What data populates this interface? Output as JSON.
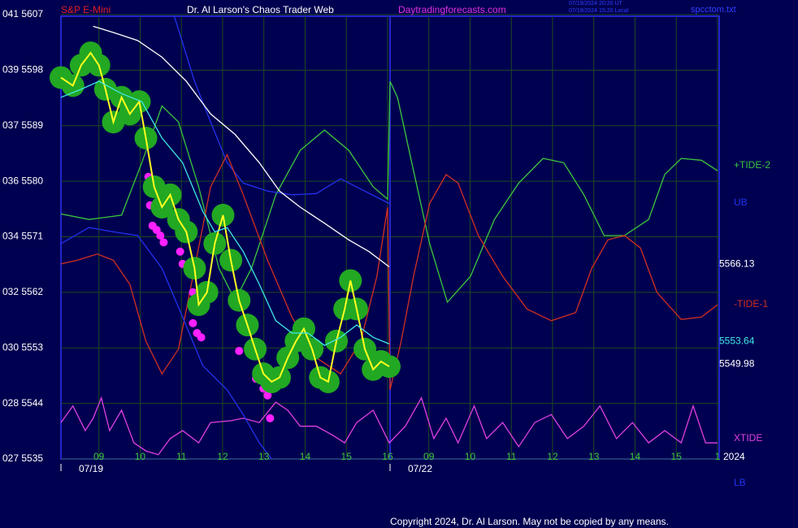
{
  "chart_data": {
    "type": "line",
    "symbol": "S&P E-Mini",
    "title": "Dr. Al Larson's Chaos Trader Web",
    "site": "Daytradingforecasts.com",
    "timestamps": [
      "07/19/2024 20:20 UT",
      "07/19/2024 15:20 Local"
    ],
    "file": "spcctom.txt",
    "copyright": "Copyright 2024, Dr. Al Larson. May not be copied by any means.",
    "year_label": "2024",
    "xlim": [
      8.08,
      24.04
    ],
    "xticks": [
      {
        "value": 9,
        "label": "09"
      },
      10,
      11,
      12,
      13,
      14,
      15,
      16,
      {
        "value": 17,
        "label": "09"
      },
      {
        "value": 18,
        "label": "10"
      },
      {
        "value": 19,
        "label": "11"
      },
      {
        "value": 20,
        "label": "12"
      },
      {
        "value": 21,
        "label": "13"
      },
      {
        "value": 22,
        "label": "14"
      },
      {
        "value": 23,
        "label": "15"
      },
      {
        "value": 24,
        "label": "1"
      }
    ],
    "x_dates": [
      {
        "value": 8.08,
        "label": "07/19"
      },
      {
        "value": 16.06,
        "label": "07/22"
      }
    ],
    "ylim": [
      5535,
      5607
    ],
    "yticks": [
      {
        "value": 5535,
        "label": "027 5535"
      },
      {
        "value": 5544,
        "label": "028 5544"
      },
      {
        "value": 5553,
        "label": "030 5553"
      },
      {
        "value": 5562,
        "label": "032 5562"
      },
      {
        "value": 5571,
        "label": "034 5571"
      },
      {
        "value": 5580,
        "label": "036 5580"
      },
      {
        "value": 5589,
        "label": "037 5589"
      },
      {
        "value": 5598,
        "label": "039 5598"
      },
      {
        "value": 5607,
        "label": "041 5607"
      }
    ],
    "grid": true,
    "series": [
      {
        "name": "+TIDE-2",
        "color": "#3cc83c",
        "x": [
          8.08,
          8.76,
          9.55,
          10.04,
          10.53,
          10.93,
          11.42,
          11.91,
          12.3,
          12.7,
          13.29,
          13.88,
          14.47,
          15.06,
          15.65,
          16.0,
          16.06,
          16.24,
          16.63,
          17.02,
          17.45,
          18.01,
          18.59,
          19.18,
          19.77,
          20.27,
          20.76,
          21.25,
          21.74,
          22.33,
          22.72,
          23.12,
          23.61,
          24.0
        ],
        "values": [
          5574.7,
          5573.8,
          5574.5,
          5583.0,
          5592.2,
          5589.6,
          5579.1,
          5565.9,
          5560.7,
          5565.9,
          5577.8,
          5585.0,
          5588.3,
          5585.0,
          5579.1,
          5577.1,
          5596.2,
          5593.6,
          5581.7,
          5569.9,
          5560.4,
          5564.6,
          5573.8,
          5579.7,
          5583.7,
          5583.0,
          5577.8,
          5571.2,
          5571.2,
          5573.8,
          5581.1,
          5583.7,
          5583.4,
          5581.7
        ]
      },
      {
        "name": "UB",
        "color": "#2232ee",
        "x": [
          10.83,
          11.32,
          11.71,
          12.11,
          12.5,
          13.09,
          13.68,
          14.27,
          14.86,
          15.45,
          16.04
        ],
        "values": [
          5606.7,
          5596.2,
          5589.6,
          5583.0,
          5579.7,
          5578.4,
          5577.8,
          5578.0,
          5580.4,
          5578.4,
          5576.4
        ]
      },
      {
        "name": "-TIDE-1",
        "color": "#d23020",
        "x": [
          8.08,
          8.47,
          8.96,
          9.35,
          9.75,
          10.14,
          10.53,
          10.93,
          11.32,
          11.71,
          12.11,
          12.5,
          13.09,
          13.68,
          14.27,
          14.86,
          15.35,
          15.74,
          16.0,
          16.06,
          16.33,
          16.63,
          17.02,
          17.42,
          17.71,
          18.2,
          18.79,
          19.38,
          19.97,
          20.56,
          20.95,
          21.34,
          21.74,
          22.13,
          22.53,
          23.12,
          23.61,
          24.0
        ],
        "values": [
          5566.6,
          5567.2,
          5568.2,
          5567.2,
          5563.3,
          5554.1,
          5548.8,
          5552.8,
          5565.9,
          5579.1,
          5584.3,
          5577.8,
          5567.2,
          5558.0,
          5551.4,
          5548.8,
          5554.1,
          5564.6,
          5575.8,
          5546.2,
          5554.1,
          5564.6,
          5576.4,
          5581.1,
          5579.7,
          5571.2,
          5564.6,
          5559.3,
          5557.4,
          5558.7,
          5565.9,
          5570.5,
          5571.2,
          5569.2,
          5562.0,
          5557.6,
          5558.0,
          5560.0
        ]
      },
      {
        "name": "XTIDE",
        "color": "#e040e0",
        "x": [
          8.08,
          8.37,
          8.67,
          8.86,
          9.06,
          9.26,
          9.55,
          9.85,
          10.14,
          10.44,
          10.73,
          11.03,
          11.42,
          11.71,
          12.2,
          12.5,
          12.89,
          13.29,
          13.58,
          13.88,
          14.27,
          14.66,
          14.96,
          15.25,
          15.65,
          16.04,
          16.43,
          16.82,
          17.12,
          17.42,
          17.71,
          18.1,
          18.4,
          18.79,
          19.18,
          19.57,
          19.97,
          20.36,
          20.76,
          21.15,
          21.55,
          21.94,
          22.33,
          22.72,
          23.12,
          23.41,
          23.71,
          24.0
        ],
        "values": [
          5540.9,
          5543.6,
          5539.6,
          5541.6,
          5544.9,
          5539.6,
          5542.9,
          5537.6,
          5536.3,
          5535.7,
          5538.3,
          5539.6,
          5537.6,
          5540.9,
          5541.2,
          5541.6,
          5540.9,
          5544.2,
          5542.9,
          5540.3,
          5540.3,
          5538.9,
          5537.6,
          5540.9,
          5542.9,
          5537.6,
          5540.3,
          5544.9,
          5538.3,
          5541.6,
          5537.6,
          5543.6,
          5538.3,
          5540.9,
          5537.0,
          5540.9,
          5542.2,
          5538.3,
          5540.3,
          5543.6,
          5538.3,
          5540.9,
          5537.6,
          5539.6,
          5537.6,
          5543.6,
          5537.6,
          5537.6
        ]
      },
      {
        "name": "LB",
        "color": "#2232ee",
        "x": [
          8.08,
          8.76,
          9.35,
          9.94,
          10.53,
          11.03,
          11.52,
          12.11,
          12.5,
          12.89,
          13.19
        ],
        "values": [
          5569.9,
          5572.5,
          5571.8,
          5571.2,
          5565.9,
          5558.0,
          5550.1,
          5546.2,
          5542.2,
          5537.6,
          5535.0
        ]
      },
      {
        "color": "#ffffff",
        "x": [
          8.86,
          9.35,
          9.94,
          10.53,
          11.12,
          11.71,
          12.3,
          12.89,
          13.38,
          13.88,
          14.47,
          15.06,
          15.55,
          16.04
        ],
        "values": [
          5605.1,
          5604.1,
          5602.8,
          5600.1,
          5596.2,
          5590.9,
          5587.6,
          5583.0,
          5578.4,
          5575.8,
          5573.2,
          5570.5,
          5568.6,
          5566.13
        ]
      },
      {
        "color": "#ff20ff",
        "mode": "markers",
        "x": [
          10.2,
          10.24,
          10.3,
          10.4,
          10.49,
          10.57,
          10.97,
          11.03,
          11.22,
          11.28,
          11.28,
          11.38,
          11.48,
          12.4,
          12.81,
          12.99,
          13.09,
          13.15
        ],
        "values": [
          5580.7,
          5576.1,
          5572.8,
          5572.1,
          5571.2,
          5570.1,
          5568.6,
          5566.6,
          5564.9,
          5562.0,
          5557.0,
          5555.4,
          5554.7,
          5552.5,
          5548.0,
          5546.4,
          5545.3,
          5541.6
        ]
      },
      {
        "color": "#ffff20",
        "glow": "#22a822",
        "x": [
          8.08,
          8.37,
          8.57,
          8.8,
          9.0,
          9.16,
          9.35,
          9.55,
          9.75,
          9.98,
          10.14,
          10.34,
          10.53,
          10.73,
          10.93,
          11.12,
          11.32,
          11.42,
          11.62,
          11.81,
          12.01,
          12.2,
          12.4,
          12.6,
          12.79,
          12.99,
          13.19,
          13.38,
          13.58,
          13.78,
          13.97,
          14.17,
          14.37,
          14.56,
          14.76,
          14.96,
          15.1,
          15.25,
          15.45,
          15.65,
          15.84,
          16.04
        ],
        "values": [
          5596.8,
          5595.5,
          5598.8,
          5600.8,
          5598.8,
          5594.9,
          5589.6,
          5593.6,
          5590.9,
          5592.9,
          5587.0,
          5579.1,
          5575.8,
          5577.8,
          5573.8,
          5571.8,
          5565.9,
          5560.0,
          5562.0,
          5569.9,
          5574.5,
          5567.2,
          5560.7,
          5556.7,
          5552.8,
          5548.8,
          5547.5,
          5548.2,
          5551.4,
          5554.1,
          5556.1,
          5552.8,
          5548.2,
          5547.5,
          5554.1,
          5559.3,
          5563.9,
          5559.3,
          5552.8,
          5549.5,
          5550.8,
          5549.98
        ]
      },
      {
        "color": "#40e8e8",
        "x": [
          8.08,
          8.57,
          9.0,
          9.55,
          10.04,
          10.53,
          11.03,
          11.52,
          11.81,
          12.11,
          12.5,
          12.89,
          13.29,
          13.68,
          14.07,
          14.47,
          14.86,
          15.25,
          15.65,
          16.04
        ],
        "values": [
          5593.6,
          5594.9,
          5596.2,
          5594.2,
          5592.9,
          5587.0,
          5583.0,
          5575.1,
          5571.8,
          5572.5,
          5568.6,
          5563.3,
          5557.4,
          5555.4,
          5555.4,
          5553.4,
          5554.7,
          5556.7,
          5554.7,
          5553.64
        ]
      }
    ]
  }
}
